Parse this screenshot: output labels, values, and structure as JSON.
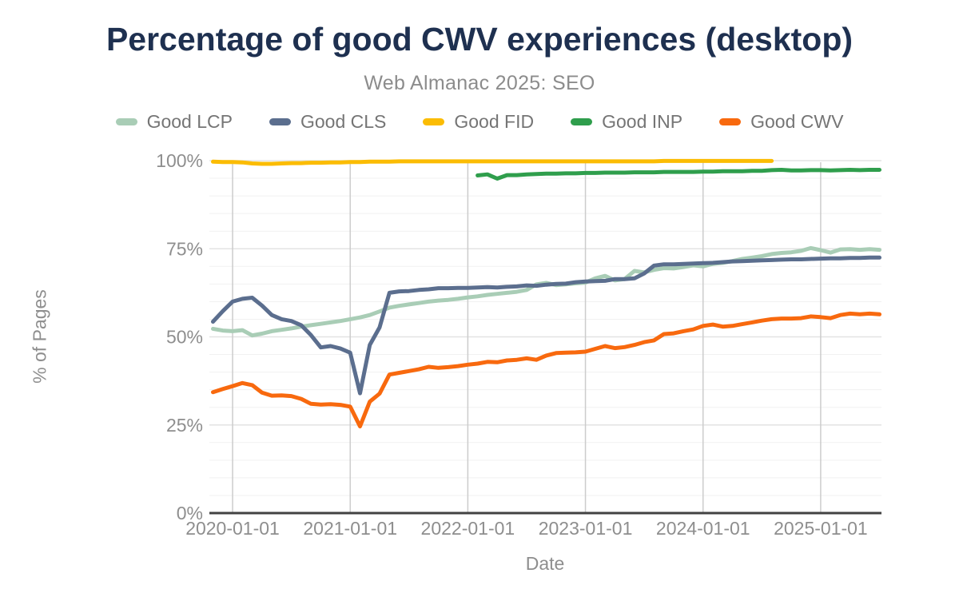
{
  "header": {
    "title": "Percentage of good CWV experiences (desktop)",
    "subtitle": "Web Almanac 2025: SEO"
  },
  "axes": {
    "y_label": "% of Pages",
    "x_label": "Date"
  },
  "colors": {
    "title": "#1e3050",
    "subtitle": "#8c8c8c",
    "axis_text": "#8e8e8e",
    "legend_text": "#757575",
    "axis_line": "#424242",
    "year_gridline": "#cccccc",
    "major_gridline": "#e3e3e3",
    "minor_gridline": "#f1f1f1"
  },
  "chart_data": {
    "type": "line",
    "title": "Percentage of good CWV experiences (desktop)",
    "subtitle": "Web Almanac 2025: SEO",
    "xlabel": "Date",
    "ylabel": "% of Pages",
    "ylim": [
      0,
      100
    ],
    "grid": true,
    "legend_position": "top",
    "y_ticks": [
      {
        "value": 0,
        "label": "0%"
      },
      {
        "value": 25,
        "label": "25%"
      },
      {
        "value": 50,
        "label": "50%"
      },
      {
        "value": 75,
        "label": "75%"
      },
      {
        "value": 100,
        "label": "100%"
      }
    ],
    "y_minor_step": 5,
    "x_tick_labels": [
      "2020-01-01",
      "2021-01-01",
      "2022-01-01",
      "2023-01-01",
      "2024-01-01",
      "2025-01-01"
    ],
    "x": [
      "2019-11",
      "2019-12",
      "2020-01",
      "2020-02",
      "2020-03",
      "2020-04",
      "2020-05",
      "2020-06",
      "2020-07",
      "2020-08",
      "2020-09",
      "2020-10",
      "2020-11",
      "2020-12",
      "2021-01",
      "2021-02",
      "2021-03",
      "2021-04",
      "2021-05",
      "2021-06",
      "2021-07",
      "2021-08",
      "2021-09",
      "2021-10",
      "2021-11",
      "2021-12",
      "2022-01",
      "2022-02",
      "2022-03",
      "2022-04",
      "2022-05",
      "2022-06",
      "2022-07",
      "2022-08",
      "2022-09",
      "2022-10",
      "2022-11",
      "2022-12",
      "2023-01",
      "2023-02",
      "2023-03",
      "2023-04",
      "2023-05",
      "2023-06",
      "2023-07",
      "2023-08",
      "2023-09",
      "2023-10",
      "2023-11",
      "2023-12",
      "2024-01",
      "2024-02",
      "2024-03",
      "2024-04",
      "2024-05",
      "2024-06",
      "2024-07",
      "2024-08",
      "2024-09",
      "2024-10",
      "2024-11",
      "2024-12",
      "2025-01",
      "2025-02",
      "2025-03",
      "2025-04",
      "2025-05",
      "2025-06",
      "2025-07"
    ],
    "series": [
      {
        "name": "Good LCP",
        "color": "#a9cdb6",
        "values": [
          52.3,
          51.8,
          51.6,
          51.9,
          50.4,
          50.9,
          51.6,
          52.0,
          52.4,
          52.9,
          53.3,
          53.7,
          54.1,
          54.5,
          55.0,
          55.5,
          56.2,
          57.2,
          58.3,
          58.8,
          59.2,
          59.6,
          60.0,
          60.3,
          60.5,
          60.8,
          61.2,
          61.5,
          61.9,
          62.2,
          62.5,
          62.8,
          63.3,
          64.9,
          65.3,
          64.7,
          64.9,
          65.2,
          65.4,
          66.6,
          67.3,
          66.0,
          66.4,
          68.7,
          68.3,
          69.0,
          69.5,
          69.4,
          69.8,
          70.3,
          70.0,
          70.7,
          71.0,
          71.5,
          72.1,
          72.5,
          72.9,
          73.5,
          73.8,
          74.0,
          74.4,
          75.2,
          74.6,
          73.9,
          74.8,
          74.9,
          74.7,
          74.9,
          74.7
        ]
      },
      {
        "name": "Good CLS",
        "color": "#5b6e8e",
        "values": [
          54.3,
          57.3,
          60.0,
          60.8,
          61.1,
          58.9,
          56.2,
          55.0,
          54.5,
          53.3,
          50.5,
          47.0,
          47.4,
          46.7,
          45.5,
          34.0,
          47.7,
          52.7,
          62.5,
          62.9,
          63.0,
          63.3,
          63.5,
          63.8,
          63.8,
          63.9,
          63.9,
          64.0,
          64.1,
          64.0,
          64.2,
          64.3,
          64.6,
          64.5,
          64.8,
          65.0,
          65.1,
          65.5,
          65.7,
          65.8,
          65.9,
          66.4,
          66.4,
          66.6,
          68.0,
          70.2,
          70.6,
          70.6,
          70.7,
          70.8,
          70.9,
          71.0,
          71.2,
          71.4,
          71.5,
          71.6,
          71.7,
          71.8,
          71.9,
          72.0,
          72.0,
          72.1,
          72.2,
          72.3,
          72.3,
          72.4,
          72.4,
          72.5,
          72.5
        ]
      },
      {
        "name": "Good FID",
        "color": "#fbbc04",
        "values": [
          99.7,
          99.6,
          99.6,
          99.5,
          99.2,
          99.1,
          99.1,
          99.2,
          99.3,
          99.3,
          99.4,
          99.4,
          99.5,
          99.5,
          99.6,
          99.6,
          99.7,
          99.7,
          99.7,
          99.8,
          99.8,
          99.8,
          99.8,
          99.8,
          99.8,
          99.8,
          99.8,
          99.8,
          99.8,
          99.8,
          99.8,
          99.8,
          99.8,
          99.8,
          99.8,
          99.8,
          99.8,
          99.8,
          99.8,
          99.8,
          99.8,
          99.8,
          99.8,
          99.8,
          99.8,
          99.8,
          99.9,
          99.9,
          99.9,
          99.9,
          99.9,
          99.9,
          99.9,
          99.9,
          99.9,
          99.9,
          99.9,
          99.9,
          null,
          null,
          null,
          null,
          null,
          null,
          null,
          null,
          null,
          null,
          null
        ]
      },
      {
        "name": "Good INP",
        "color": "#2f9e4c",
        "values": [
          null,
          null,
          null,
          null,
          null,
          null,
          null,
          null,
          null,
          null,
          null,
          null,
          null,
          null,
          null,
          null,
          null,
          null,
          null,
          null,
          null,
          null,
          null,
          null,
          null,
          null,
          null,
          95.8,
          96.1,
          94.9,
          95.9,
          95.9,
          96.1,
          96.2,
          96.3,
          96.3,
          96.4,
          96.4,
          96.5,
          96.5,
          96.6,
          96.6,
          96.6,
          96.7,
          96.7,
          96.7,
          96.8,
          96.8,
          96.8,
          96.8,
          96.9,
          96.9,
          97.0,
          97.0,
          97.0,
          97.1,
          97.1,
          97.3,
          97.4,
          97.2,
          97.2,
          97.3,
          97.3,
          97.2,
          97.3,
          97.4,
          97.3,
          97.4,
          97.4
        ]
      },
      {
        "name": "Good CWV",
        "color": "#f8690e",
        "values": [
          34.3,
          35.2,
          36.0,
          36.9,
          36.3,
          34.2,
          33.3,
          33.4,
          33.2,
          32.4,
          31.0,
          30.8,
          30.9,
          30.7,
          30.2,
          24.6,
          31.6,
          33.9,
          39.3,
          39.8,
          40.3,
          40.8,
          41.5,
          41.2,
          41.4,
          41.7,
          42.1,
          42.4,
          42.9,
          42.8,
          43.3,
          43.5,
          43.9,
          43.5,
          44.7,
          45.4,
          45.5,
          45.6,
          45.8,
          46.6,
          47.4,
          46.8,
          47.1,
          47.7,
          48.5,
          49.0,
          50.8,
          51.0,
          51.6,
          52.1,
          53.1,
          53.5,
          52.9,
          53.1,
          53.6,
          54.1,
          54.6,
          55.0,
          55.2,
          55.2,
          55.3,
          55.8,
          55.6,
          55.3,
          56.2,
          56.6,
          56.4,
          56.6,
          56.4
        ]
      }
    ]
  }
}
